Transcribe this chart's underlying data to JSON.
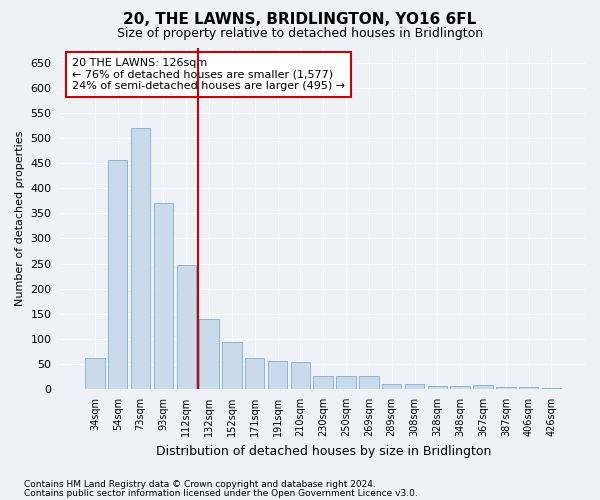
{
  "title": "20, THE LAWNS, BRIDLINGTON, YO16 6FL",
  "subtitle": "Size of property relative to detached houses in Bridlington",
  "xlabel": "Distribution of detached houses by size in Bridlington",
  "ylabel": "Number of detached properties",
  "categories": [
    "34sqm",
    "54sqm",
    "73sqm",
    "93sqm",
    "112sqm",
    "132sqm",
    "152sqm",
    "171sqm",
    "191sqm",
    "210sqm",
    "230sqm",
    "250sqm",
    "269sqm",
    "289sqm",
    "308sqm",
    "328sqm",
    "348sqm",
    "367sqm",
    "387sqm",
    "406sqm",
    "426sqm"
  ],
  "values": [
    62,
    457,
    520,
    370,
    248,
    140,
    93,
    62,
    57,
    55,
    26,
    26,
    26,
    11,
    11,
    6,
    6,
    9,
    4,
    4,
    3
  ],
  "bar_color": "#c9daea",
  "bar_edge_color": "#7bafd4",
  "vline_x": 4.5,
  "vline_color": "#cc0000",
  "annotation_line1": "20 THE LAWNS: 126sqm",
  "annotation_line2": "← 76% of detached houses are smaller (1,577)",
  "annotation_line3": "24% of semi-detached houses are larger (495) →",
  "annotation_box_color": "#ffffff",
  "annotation_box_edge_color": "#cc0000",
  "ylim": [
    0,
    680
  ],
  "yticks": [
    0,
    50,
    100,
    150,
    200,
    250,
    300,
    350,
    400,
    450,
    500,
    550,
    600,
    650
  ],
  "footnote1": "Contains HM Land Registry data © Crown copyright and database right 2024.",
  "footnote2": "Contains public sector information licensed under the Open Government Licence v3.0.",
  "bg_color": "#eef2f7",
  "plot_bg_color": "#eef2f7",
  "grid_color": "#ffffff"
}
